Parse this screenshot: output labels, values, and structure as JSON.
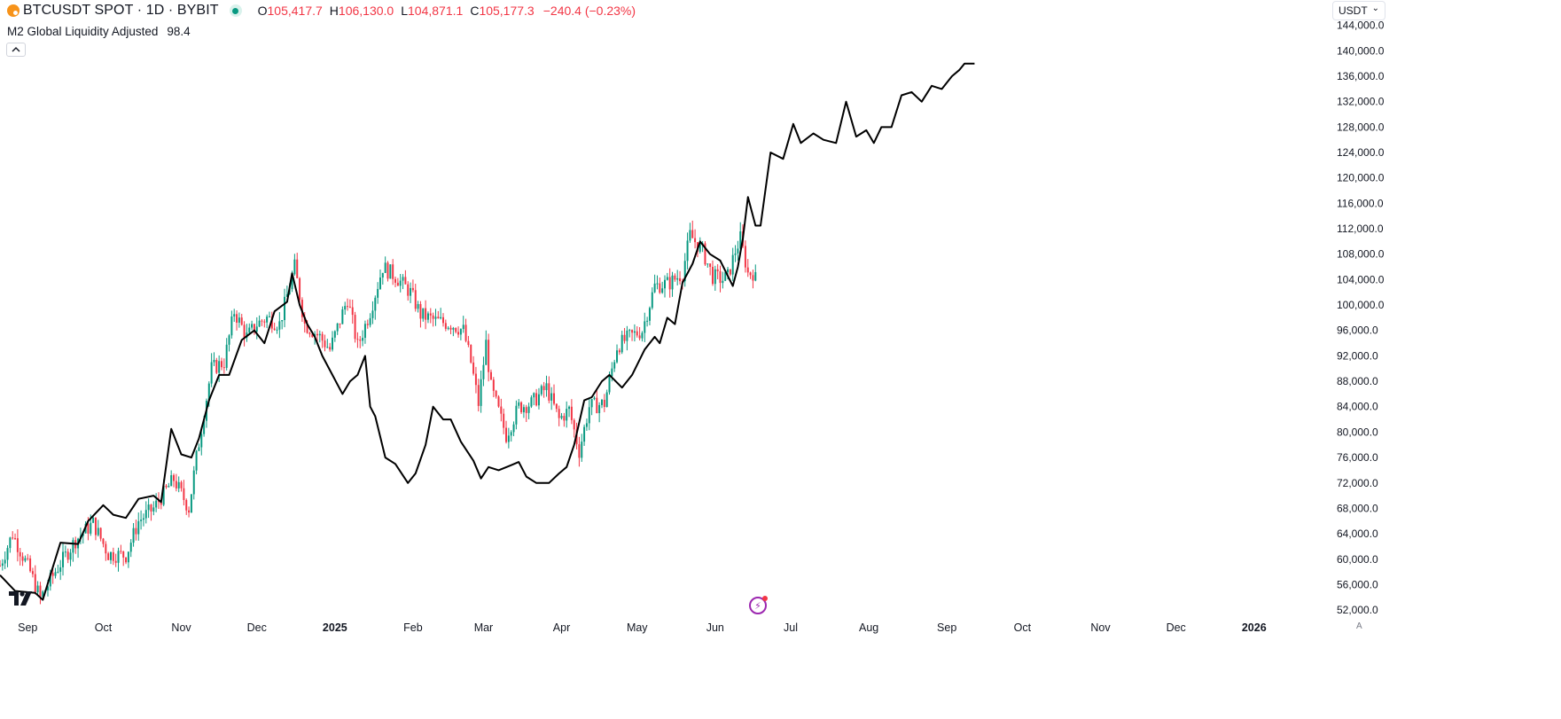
{
  "header": {
    "symbol": "BTCUSDT SPOT · 1D · BYBIT",
    "open_label": "O",
    "open": "105,417.7",
    "high_label": "H",
    "high": "106,130.0",
    "low_label": "L",
    "low": "104,871.1",
    "close_label": "C",
    "close": "105,177.3",
    "change": "−240.4 (−0.23%)"
  },
  "indicator": {
    "name": "M2 Global Liquidity Adjusted",
    "value": "98.4"
  },
  "controls": {
    "currency": "USDT",
    "auto_label": "A"
  },
  "icons": {
    "symbol": "bitcoin-icon",
    "status": "market-status-dot",
    "collapse": "chevron-up-icon",
    "currency_menu": "chevron-down-icon",
    "brand": "tradingview-logo",
    "alert": "lightning-icon"
  },
  "colors": {
    "up": "#089981",
    "down": "#f23645",
    "line": "#000000",
    "axis_text": "#131722",
    "background": "#ffffff"
  },
  "chart_data": {
    "type": "candlestick",
    "x_axis": {
      "type": "date",
      "range": [
        "2024-08-21",
        "2026-01-31"
      ],
      "ticks": [
        {
          "label": "Sep",
          "date": "2024-09-01"
        },
        {
          "label": "Oct",
          "date": "2024-10-01"
        },
        {
          "label": "Nov",
          "date": "2024-11-01"
        },
        {
          "label": "Dec",
          "date": "2024-12-01"
        },
        {
          "label": "2025",
          "date": "2025-01-01",
          "bold": true
        },
        {
          "label": "Feb",
          "date": "2025-02-01"
        },
        {
          "label": "Mar",
          "date": "2025-03-01"
        },
        {
          "label": "Apr",
          "date": "2025-04-01"
        },
        {
          "label": "May",
          "date": "2025-05-01"
        },
        {
          "label": "Jun",
          "date": "2025-06-01"
        },
        {
          "label": "Jul",
          "date": "2025-07-01"
        },
        {
          "label": "Aug",
          "date": "2025-08-01"
        },
        {
          "label": "Sep",
          "date": "2025-09-01"
        },
        {
          "label": "Oct",
          "date": "2025-10-01"
        },
        {
          "label": "Nov",
          "date": "2025-11-01"
        },
        {
          "label": "Dec",
          "date": "2025-12-01"
        },
        {
          "label": "2026",
          "date": "2026-01-01",
          "bold": true
        }
      ]
    },
    "y_axis": {
      "position": "right",
      "range": [
        50900,
        148000
      ],
      "ticks": [
        "52,000.0",
        "56,000.0",
        "60,000.0",
        "64,000.0",
        "68,000.0",
        "72,000.0",
        "76,000.0",
        "80,000.0",
        "84,000.0",
        "88,000.0",
        "92,000.0",
        "96,000.0",
        "100,000.0",
        "104,000.0",
        "108,000.0",
        "112,000.0",
        "116,000.0",
        "120,000.0",
        "124,000.0",
        "128,000.0",
        "132,000.0",
        "136,000.0",
        "140,000.0",
        "144,000.0"
      ],
      "tick_values": [
        52000,
        56000,
        60000,
        64000,
        68000,
        72000,
        76000,
        80000,
        84000,
        88000,
        92000,
        96000,
        100000,
        104000,
        108000,
        112000,
        116000,
        120000,
        124000,
        128000,
        132000,
        136000,
        140000,
        144000
      ]
    },
    "grid": false,
    "series": [
      {
        "name": "BTCUSDT SPOT · 1D · BYBIT",
        "kind": "candles",
        "close_path": [
          [
            "2024-08-21",
            59000
          ],
          [
            "2024-08-26",
            64000
          ],
          [
            "2024-09-02",
            58000
          ],
          [
            "2024-09-06",
            53800
          ],
          [
            "2024-09-12",
            58100
          ],
          [
            "2024-09-20",
            63000
          ],
          [
            "2024-09-27",
            65700
          ],
          [
            "2024-10-03",
            60800
          ],
          [
            "2024-10-10",
            60600
          ],
          [
            "2024-10-15",
            66000
          ],
          [
            "2024-10-21",
            68000
          ],
          [
            "2024-10-29",
            72600
          ],
          [
            "2024-11-04",
            68000
          ],
          [
            "2024-11-07",
            76000
          ],
          [
            "2024-11-13",
            90000
          ],
          [
            "2024-11-18",
            91000
          ],
          [
            "2024-11-22",
            99000
          ],
          [
            "2024-11-27",
            95000
          ],
          [
            "2024-12-01",
            97000
          ],
          [
            "2024-12-05",
            98000
          ],
          [
            "2024-12-10",
            97000
          ],
          [
            "2024-12-16",
            106000
          ],
          [
            "2024-12-20",
            97000
          ],
          [
            "2024-12-26",
            95000
          ],
          [
            "2024-12-30",
            93000
          ],
          [
            "2025-01-06",
            101000
          ],
          [
            "2025-01-10",
            93500
          ],
          [
            "2025-01-15",
            99000
          ],
          [
            "2025-01-20",
            106000
          ],
          [
            "2025-01-25",
            104500
          ],
          [
            "2025-01-31",
            102000
          ],
          [
            "2025-02-04",
            98500
          ],
          [
            "2025-02-10",
            97500
          ],
          [
            "2025-02-16",
            97000
          ],
          [
            "2025-02-21",
            96000
          ],
          [
            "2025-02-24",
            91000
          ],
          [
            "2025-02-27",
            84500
          ],
          [
            "2025-03-02",
            94000
          ],
          [
            "2025-03-04",
            87000
          ],
          [
            "2025-03-10",
            79500
          ],
          [
            "2025-03-15",
            84000
          ],
          [
            "2025-03-20",
            84500
          ],
          [
            "2025-03-26",
            87000
          ],
          [
            "2025-03-31",
            82000
          ],
          [
            "2025-04-04",
            83500
          ],
          [
            "2025-04-08",
            77000
          ],
          [
            "2025-04-12",
            84000
          ],
          [
            "2025-04-18",
            84500
          ],
          [
            "2025-04-23",
            93500
          ],
          [
            "2025-04-28",
            95000
          ],
          [
            "2025-05-03",
            96000
          ],
          [
            "2025-05-08",
            103000
          ],
          [
            "2025-05-14",
            103500
          ],
          [
            "2025-05-19",
            105000
          ],
          [
            "2025-05-22",
            111000
          ],
          [
            "2025-05-27",
            108500
          ],
          [
            "2025-05-31",
            104500
          ],
          [
            "2025-06-04",
            104000
          ],
          [
            "2025-06-06",
            104500
          ],
          [
            "2025-06-09",
            108500
          ],
          [
            "2025-06-11",
            110500
          ],
          [
            "2025-06-14",
            105000
          ],
          [
            "2025-06-17",
            105177
          ]
        ]
      },
      {
        "name": "M2 Global Liquidity Adjusted",
        "kind": "line",
        "color": "#000000",
        "points": [
          [
            "2024-08-21",
            57500
          ],
          [
            "2024-08-27",
            55000
          ],
          [
            "2024-09-04",
            54700
          ],
          [
            "2024-09-07",
            53600
          ],
          [
            "2024-09-10",
            57500
          ],
          [
            "2024-09-14",
            62600
          ],
          [
            "2024-09-21",
            62400
          ],
          [
            "2024-09-25",
            66000
          ],
          [
            "2024-10-01",
            68500
          ],
          [
            "2024-10-05",
            67000
          ],
          [
            "2024-10-10",
            66500
          ],
          [
            "2024-10-15",
            69500
          ],
          [
            "2024-10-21",
            70000
          ],
          [
            "2024-10-24",
            69000
          ],
          [
            "2024-10-28",
            80500
          ],
          [
            "2024-11-01",
            76500
          ],
          [
            "2024-11-05",
            76000
          ],
          [
            "2024-11-08",
            79000
          ],
          [
            "2024-11-12",
            85000
          ],
          [
            "2024-11-16",
            89000
          ],
          [
            "2024-11-20",
            89000
          ],
          [
            "2024-11-25",
            94500
          ],
          [
            "2024-11-30",
            96000
          ],
          [
            "2024-12-04",
            94000
          ],
          [
            "2024-12-08",
            99000
          ],
          [
            "2024-12-13",
            100500
          ],
          [
            "2024-12-15",
            105000
          ],
          [
            "2024-12-18",
            100000
          ],
          [
            "2024-12-21",
            97000
          ],
          [
            "2024-12-24",
            95000
          ],
          [
            "2024-12-27",
            92000
          ],
          [
            "2024-12-31",
            89000
          ],
          [
            "2025-01-04",
            86000
          ],
          [
            "2025-01-07",
            88000
          ],
          [
            "2025-01-10",
            89000
          ],
          [
            "2025-01-13",
            92000
          ],
          [
            "2025-01-15",
            84000
          ],
          [
            "2025-01-17",
            82500
          ],
          [
            "2025-01-21",
            76000
          ],
          [
            "2025-01-25",
            75000
          ],
          [
            "2025-01-30",
            72000
          ],
          [
            "2025-02-02",
            73500
          ],
          [
            "2025-02-06",
            78000
          ],
          [
            "2025-02-09",
            84000
          ],
          [
            "2025-02-13",
            82000
          ],
          [
            "2025-02-16",
            82000
          ],
          [
            "2025-02-20",
            78500
          ],
          [
            "2025-02-25",
            75500
          ],
          [
            "2025-02-28",
            72700
          ],
          [
            "2025-03-03",
            74500
          ],
          [
            "2025-03-07",
            74000
          ],
          [
            "2025-03-12",
            74800
          ],
          [
            "2025-03-15",
            75300
          ],
          [
            "2025-03-18",
            73000
          ],
          [
            "2025-03-22",
            72000
          ],
          [
            "2025-03-27",
            72000
          ],
          [
            "2025-03-31",
            73500
          ],
          [
            "2025-04-03",
            74500
          ],
          [
            "2025-04-06",
            78000
          ],
          [
            "2025-04-10",
            85000
          ],
          [
            "2025-04-13",
            85500
          ],
          [
            "2025-04-17",
            88000
          ],
          [
            "2025-04-20",
            89000
          ],
          [
            "2025-04-25",
            87000
          ],
          [
            "2025-04-29",
            89000
          ],
          [
            "2025-05-04",
            93000
          ],
          [
            "2025-05-08",
            95000
          ],
          [
            "2025-05-10",
            94000
          ],
          [
            "2025-05-13",
            98000
          ],
          [
            "2025-05-16",
            97000
          ],
          [
            "2025-05-19",
            103500
          ],
          [
            "2025-05-23",
            106500
          ],
          [
            "2025-05-26",
            110000
          ],
          [
            "2025-05-30",
            108000
          ],
          [
            "2025-06-03",
            107000
          ],
          [
            "2025-06-08",
            103000
          ],
          [
            "2025-06-10",
            106000
          ],
          [
            "2025-06-12",
            110500
          ],
          [
            "2025-06-14",
            117000
          ],
          [
            "2025-06-17",
            112500
          ],
          [
            "2025-06-19",
            112500
          ],
          [
            "2025-06-23",
            124000
          ],
          [
            "2025-06-28",
            123000
          ],
          [
            "2025-07-02",
            128500
          ],
          [
            "2025-07-05",
            125500
          ],
          [
            "2025-07-10",
            127000
          ],
          [
            "2025-07-14",
            126000
          ],
          [
            "2025-07-19",
            125500
          ],
          [
            "2025-07-23",
            132000
          ],
          [
            "2025-07-27",
            126500
          ],
          [
            "2025-07-31",
            127500
          ],
          [
            "2025-08-03",
            125500
          ],
          [
            "2025-08-06",
            128000
          ],
          [
            "2025-08-10",
            128000
          ],
          [
            "2025-08-14",
            133000
          ],
          [
            "2025-08-18",
            133500
          ],
          [
            "2025-08-22",
            132000
          ],
          [
            "2025-08-26",
            134500
          ],
          [
            "2025-08-30",
            134000
          ],
          [
            "2025-09-03",
            136000
          ],
          [
            "2025-09-06",
            137000
          ],
          [
            "2025-09-08",
            138000
          ],
          [
            "2025-09-12",
            138000
          ]
        ]
      }
    ]
  }
}
